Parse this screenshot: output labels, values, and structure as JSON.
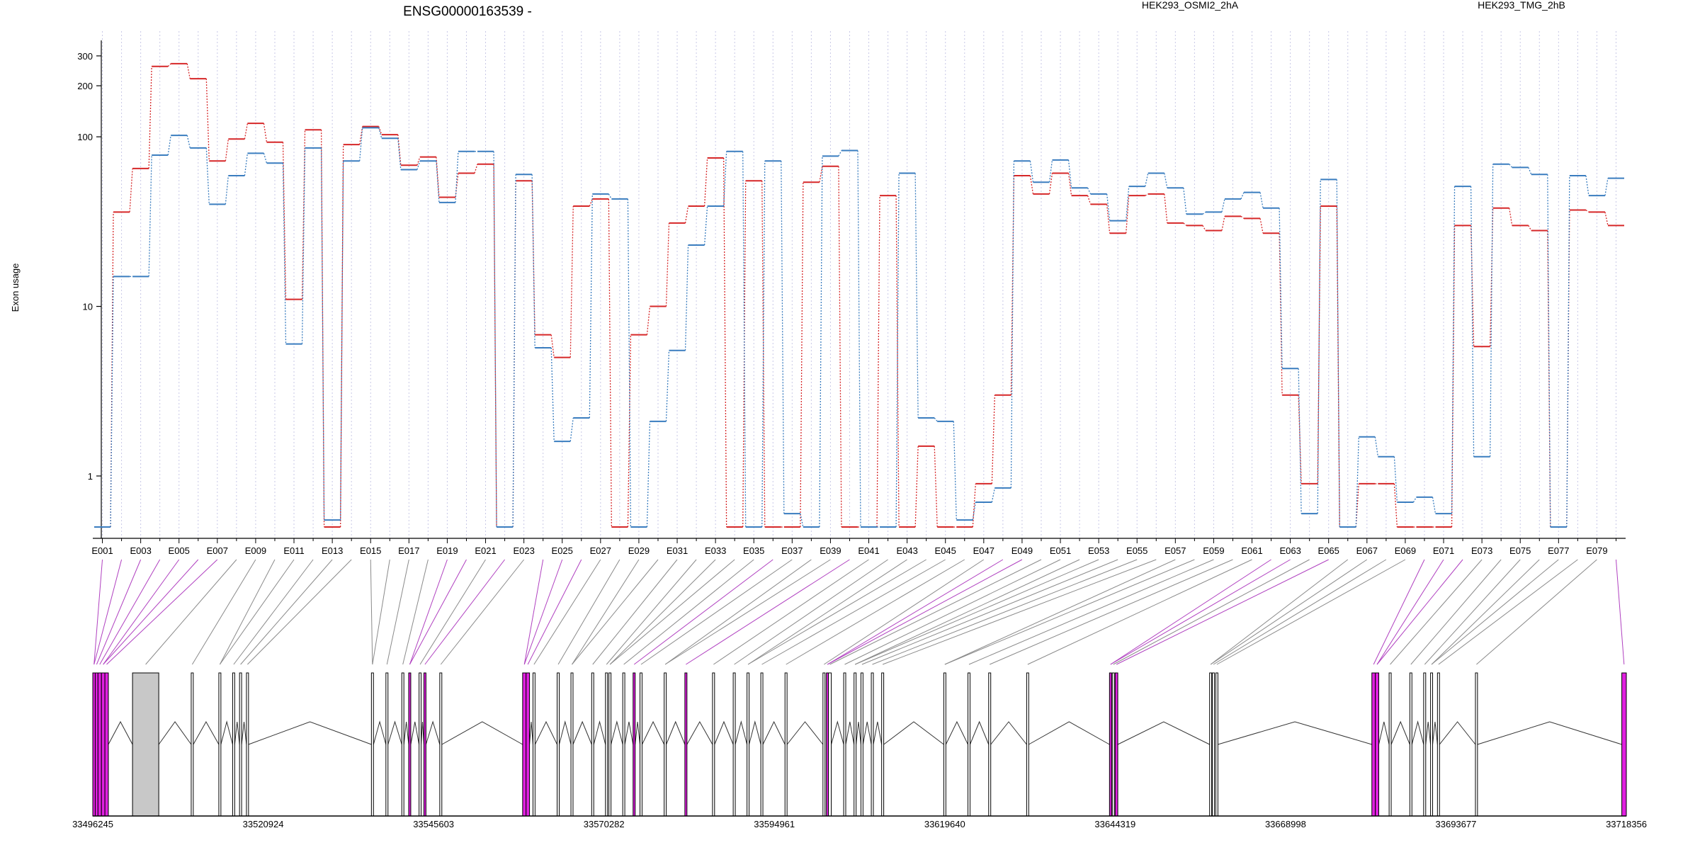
{
  "chart_data": {
    "type": "line",
    "title": "ENSG00000163539 -",
    "ylabel": "Exon usage",
    "xlabel": "",
    "y_scale": "log",
    "ylim": [
      0.45,
      400
    ],
    "y_ticks": [
      1,
      10,
      100,
      200,
      300
    ],
    "grid": "vertical dotted per exon",
    "legend_placement": "top",
    "categories": [
      "E001",
      "E002",
      "E003",
      "E004",
      "E005",
      "E006",
      "E007",
      "E008",
      "E009",
      "E010",
      "E011",
      "E012",
      "E013",
      "E014",
      "E015",
      "E016",
      "E017",
      "E018",
      "E019",
      "E020",
      "E021",
      "E022",
      "E023",
      "E024",
      "E025",
      "E026",
      "E027",
      "E028",
      "E029",
      "E030",
      "E031",
      "E032",
      "E033",
      "E034",
      "E035",
      "E036",
      "E037",
      "E038",
      "E039",
      "E040",
      "E041",
      "E042",
      "E043",
      "E044",
      "E045",
      "E046",
      "E047",
      "E048",
      "E049",
      "E050",
      "E051",
      "E052",
      "E053",
      "E054",
      "E055",
      "E056",
      "E057",
      "E058",
      "E059",
      "E060",
      "E061",
      "E062",
      "E063",
      "E064",
      "E065",
      "E066",
      "E067",
      "E068",
      "E069",
      "E070",
      "E071",
      "E072",
      "E073",
      "E074",
      "E075",
      "E076",
      "E077",
      "E078",
      "E079",
      "E080"
    ],
    "tick_labels": [
      "E001",
      "E003",
      "E005",
      "E007",
      "E009",
      "E011",
      "E013",
      "E015",
      "E017",
      "E019",
      "E021",
      "E023",
      "E025",
      "E027",
      "E029",
      "E031",
      "E033",
      "E035",
      "E037",
      "E039",
      "E041",
      "E043",
      "E045",
      "E047",
      "E049",
      "E051",
      "E053",
      "E055",
      "E057",
      "E059",
      "E061",
      "E063",
      "E065",
      "E067",
      "E069",
      "E071",
      "E073",
      "E075",
      "E077",
      "E079"
    ],
    "series": [
      {
        "name": "HEK293_OSMI2_2hA",
        "color": "#d62728",
        "values": [
          0.5,
          36,
          65,
          260,
          270,
          220,
          72,
          97,
          120,
          93,
          11,
          110,
          0.5,
          90,
          115,
          103,
          68,
          76,
          44,
          61,
          69,
          0.5,
          55,
          6.8,
          5,
          39,
          43,
          0.5,
          6.8,
          10,
          31,
          39,
          75,
          0.5,
          55,
          0.5,
          0.5,
          54,
          67,
          0.5,
          0.5,
          45,
          0.5,
          1.5,
          0.5,
          0.5,
          0.9,
          3,
          59,
          46,
          61,
          45,
          40,
          27,
          45,
          46,
          31,
          30,
          28,
          34,
          33,
          27,
          3,
          0.9,
          39,
          0.5,
          0.9,
          0.9,
          0.5,
          0.5,
          0.5,
          30,
          5.8,
          38,
          30,
          28,
          0.5,
          37,
          36,
          30
        ]
      },
      {
        "name": "HEK293_TMG_2hB",
        "color": "#3a7dbf",
        "values": [
          0.5,
          15,
          15,
          78,
          102,
          86,
          40,
          59,
          80,
          70,
          6,
          86,
          0.55,
          72,
          113,
          98,
          64,
          72,
          41,
          82,
          82,
          0.5,
          60,
          5.7,
          1.6,
          2.2,
          46,
          43,
          0.5,
          2.1,
          5.5,
          23,
          39,
          82,
          0.5,
          72,
          0.6,
          0.5,
          77,
          83,
          0.5,
          0.5,
          61,
          2.2,
          2.1,
          0.55,
          0.7,
          0.85,
          72,
          54,
          73,
          50,
          46,
          32,
          51,
          61,
          50,
          35,
          36,
          43,
          47,
          38,
          4.3,
          0.6,
          56,
          0.5,
          1.7,
          1.3,
          0.7,
          0.75,
          0.6,
          51,
          1.3,
          69,
          66,
          60,
          0.5,
          59,
          45,
          57
        ]
      }
    ]
  },
  "gene_model": {
    "axis_labels": [
      "33496245",
      "33520924",
      "33545603",
      "33570282",
      "33594961",
      "33619640",
      "33644319",
      "33668998",
      "33693677",
      "33718356"
    ],
    "axis_ticks": [
      33496245,
      33520924,
      33545603,
      33570282,
      33594961,
      33619640,
      33644319,
      33668998,
      33693677,
      33718356
    ],
    "range": [
      33496245,
      33718356
    ],
    "exon_color_normal": "#ffffff",
    "exon_color_highlight": "#e020e0",
    "exon_color_grey": "#c8c8c8",
    "exons": [
      [
        33496245,
        33496600,
        "m"
      ],
      [
        33496600,
        33497000,
        "m"
      ],
      [
        33497000,
        33497500,
        "m"
      ],
      [
        33497500,
        33498000,
        "m"
      ],
      [
        33498000,
        33498500,
        "m"
      ],
      [
        33502000,
        33505800,
        "g"
      ],
      [
        33510500,
        33510800,
        "n"
      ],
      [
        33514500,
        33514800,
        "n"
      ],
      [
        33516500,
        33516800,
        "n"
      ],
      [
        33517500,
        33517800,
        "n"
      ],
      [
        33518500,
        33518800,
        "n"
      ],
      [
        33536600,
        33536900,
        "n"
      ],
      [
        33538700,
        33539000,
        "n"
      ],
      [
        33541000,
        33541300,
        "n"
      ],
      [
        33542000,
        33542300,
        "m"
      ],
      [
        33543500,
        33543800,
        "n"
      ],
      [
        33544200,
        33544500,
        "m"
      ],
      [
        33546500,
        33546800,
        "n"
      ],
      [
        33558500,
        33559000,
        "m"
      ],
      [
        33559000,
        33559500,
        "m"
      ],
      [
        33560000,
        33560300,
        "n"
      ],
      [
        33563500,
        33563800,
        "n"
      ],
      [
        33565500,
        33565800,
        "n"
      ],
      [
        33568500,
        33568800,
        "n"
      ],
      [
        33570500,
        33570800,
        "n"
      ],
      [
        33571000,
        33571300,
        "n"
      ],
      [
        33573000,
        33573300,
        "n"
      ],
      [
        33574500,
        33574800,
        "m"
      ],
      [
        33575500,
        33575800,
        "n"
      ],
      [
        33579000,
        33579300,
        "n"
      ],
      [
        33582000,
        33582300,
        "m"
      ],
      [
        33586000,
        33586300,
        "n"
      ],
      [
        33589000,
        33589300,
        "n"
      ],
      [
        33591000,
        33591300,
        "n"
      ],
      [
        33593000,
        33593300,
        "n"
      ],
      [
        33596500,
        33596800,
        "n"
      ],
      [
        33602000,
        33602300,
        "n"
      ],
      [
        33602500,
        33602800,
        "m"
      ],
      [
        33602800,
        33603200,
        "n"
      ],
      [
        33605000,
        33605300,
        "n"
      ],
      [
        33606500,
        33606800,
        "n"
      ],
      [
        33607500,
        33607800,
        "n"
      ],
      [
        33609000,
        33609300,
        "n"
      ],
      [
        33610500,
        33610800,
        "n"
      ],
      [
        33619500,
        33619800,
        "n"
      ],
      [
        33623000,
        33623300,
        "n"
      ],
      [
        33626000,
        33626300,
        "n"
      ],
      [
        33631500,
        33631800,
        "n"
      ],
      [
        33643500,
        33643800,
        "m"
      ],
      [
        33643900,
        33644200,
        "n"
      ],
      [
        33644319,
        33644700,
        "m"
      ],
      [
        33658000,
        33658300,
        "n"
      ],
      [
        33658400,
        33658700,
        "n"
      ],
      [
        33658900,
        33659200,
        "n"
      ],
      [
        33681500,
        33682000,
        "m"
      ],
      [
        33682000,
        33682500,
        "m"
      ],
      [
        33684000,
        33684300,
        "n"
      ],
      [
        33687000,
        33687300,
        "n"
      ],
      [
        33689000,
        33689300,
        "n"
      ],
      [
        33690000,
        33690300,
        "n"
      ],
      [
        33691000,
        33691300,
        "n"
      ],
      [
        33696500,
        33696800,
        "n"
      ],
      [
        33717700,
        33718356,
        "m"
      ]
    ]
  }
}
